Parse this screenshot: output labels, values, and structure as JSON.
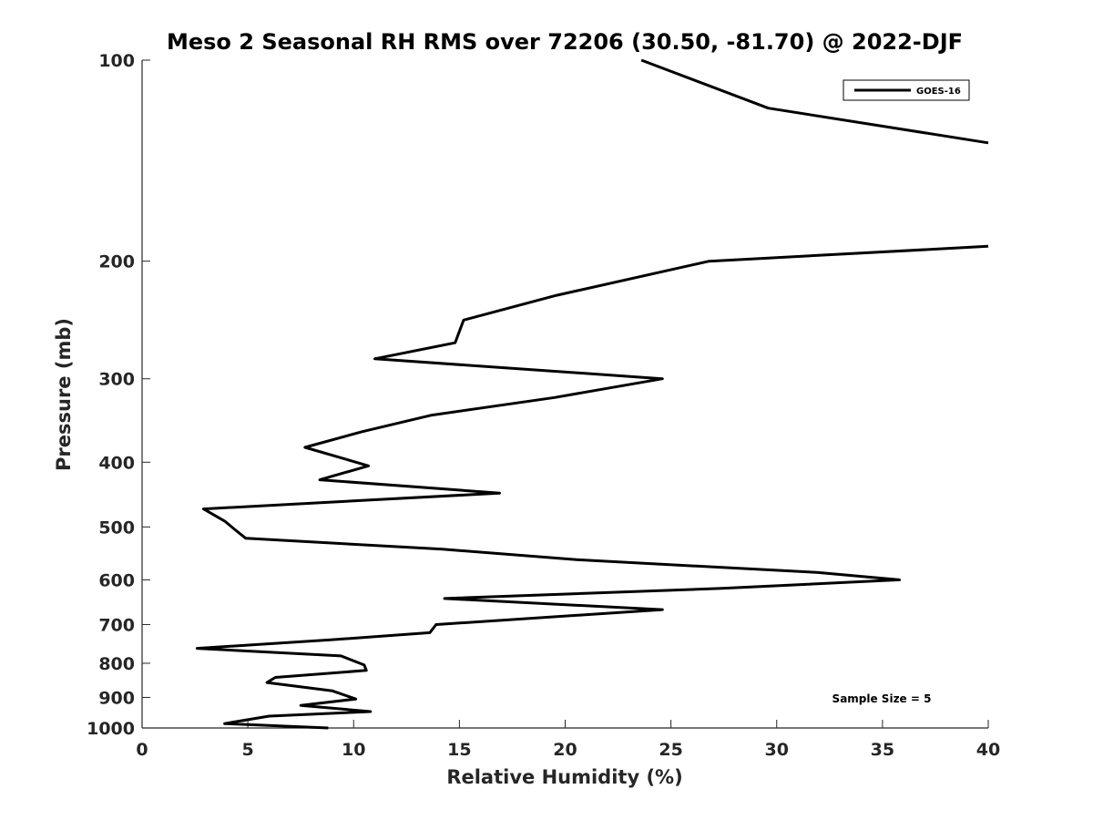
{
  "chart_data": {
    "type": "line",
    "title": "Meso 2 Seasonal RH RMS over 72206 (30.50, -81.70) @ 2022-DJF",
    "xlabel": "Relative Humidity (%)",
    "ylabel": "Pressure (mb)",
    "xlim": [
      0,
      40
    ],
    "ylim": [
      1000,
      100
    ],
    "y_scale": "log-pressure (reversed, 1000 at bottom)",
    "xticks": [
      "0",
      "5",
      "10",
      "15",
      "20",
      "25",
      "30",
      "35",
      "40"
    ],
    "yticks": [
      "100",
      "200",
      "300",
      "400",
      "500",
      "600",
      "700",
      "800",
      "900",
      "1000"
    ],
    "grid": false,
    "legend_position": "top-right",
    "annotation": "Sample Size = 5",
    "series": [
      {
        "name": "GOES-16",
        "color": "#000000",
        "points": [
          [
            8.8,
            1000
          ],
          [
            3.9,
            985
          ],
          [
            6.0,
            960
          ],
          [
            10.8,
            945
          ],
          [
            7.5,
            925
          ],
          [
            10.1,
            905
          ],
          [
            9.0,
            880
          ],
          [
            5.9,
            855
          ],
          [
            6.3,
            840
          ],
          [
            10.6,
            820
          ],
          [
            10.5,
            805
          ],
          [
            9.4,
            780
          ],
          [
            2.6,
            760
          ],
          [
            8.9,
            738
          ],
          [
            13.6,
            720
          ],
          [
            13.9,
            700
          ],
          [
            24.6,
            665
          ],
          [
            14.3,
            640
          ],
          [
            27.4,
            618
          ],
          [
            35.8,
            600
          ],
          [
            31.9,
            585
          ],
          [
            20.6,
            560
          ],
          [
            14.2,
            540
          ],
          [
            4.9,
            520
          ],
          [
            4.4,
            505
          ],
          [
            3.9,
            490
          ],
          [
            2.9,
            470
          ],
          [
            16.9,
            445
          ],
          [
            8.4,
            425
          ],
          [
            10.7,
            405
          ],
          [
            7.7,
            380
          ],
          [
            10.4,
            360
          ],
          [
            13.7,
            340
          ],
          [
            19.5,
            320
          ],
          [
            24.6,
            300
          ],
          [
            11.0,
            280
          ],
          [
            14.8,
            265
          ],
          [
            15.2,
            245
          ],
          [
            19.6,
            225
          ],
          [
            26.8,
            200
          ],
          [
            40.0,
            190
          ]
        ]
      },
      {
        "name": "GOES-16",
        "color": "#000000",
        "points": [
          [
            23.6,
            100
          ],
          [
            29.6,
            118
          ],
          [
            40.0,
            133
          ]
        ]
      }
    ]
  }
}
